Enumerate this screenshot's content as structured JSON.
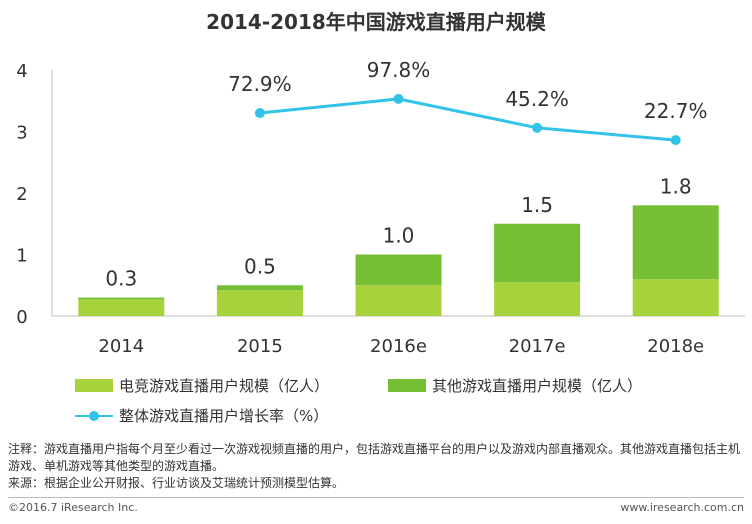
{
  "title": "2014-2018年中国游戏直播用户规模",
  "chart_data": {
    "type": "bar",
    "stacked": true,
    "categories": [
      "2014",
      "2015",
      "2016e",
      "2017e",
      "2018e"
    ],
    "series": [
      {
        "name": "电竞游戏直播用户规模（亿人）",
        "values": [
          0.27,
          0.42,
          0.5,
          0.55,
          0.6
        ],
        "color": "#a8d23c"
      },
      {
        "name": "其他游戏直播用户规模（亿人）",
        "values": [
          0.03,
          0.08,
          0.5,
          0.95,
          1.2
        ],
        "color": "#76be33"
      }
    ],
    "totals": [
      0.3,
      0.5,
      1.0,
      1.5,
      1.8
    ],
    "total_labels": [
      "0.3",
      "0.5",
      "1.0",
      "1.5",
      "1.8"
    ],
    "line": {
      "name": "整体游戏直播用户增长率（%）",
      "categories": [
        "2015",
        "2016e",
        "2017e",
        "2018e"
      ],
      "values": [
        72.9,
        97.8,
        45.2,
        22.7
      ],
      "labels": [
        "72.9%",
        "97.8%",
        "45.2%",
        "22.7%"
      ],
      "color": "#33c3e8",
      "plot_y": [
        3.3,
        3.53,
        3.06,
        2.86
      ]
    },
    "ylim": [
      0,
      4
    ],
    "yticks": [
      0,
      1,
      2,
      3,
      4
    ],
    "ytick_labels": [
      "0",
      "1",
      "2",
      "3",
      "4"
    ]
  },
  "legend": {
    "series1": "电竞游戏直播用户规模（亿人）",
    "series2": "其他游戏直播用户规模（亿人）",
    "line": "整体游戏直播用户增长率（%）"
  },
  "note": {
    "line1": "注释：游戏直播用户指每个月至少看过一次游戏视频直播的用户，包括游戏直播平台的用户以及游戏内部直播观众。其他游戏直播包括主机游戏、单机游戏等其他类型的游戏直播。",
    "line2": "来源：根据企业公开财报、行业访谈及艾瑞统计预测模型估算。"
  },
  "footer": {
    "left": "©2016.7 iResearch Inc.",
    "right": "www.iresearch.com.cn"
  }
}
